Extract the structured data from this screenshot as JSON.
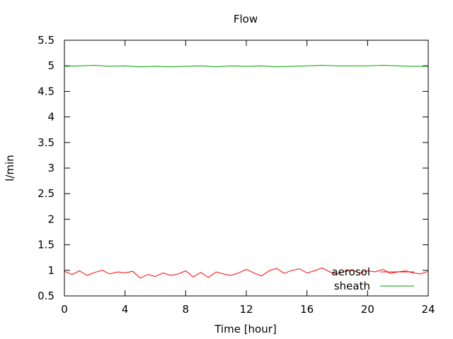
{
  "chart_data": {
    "type": "line",
    "title": "Flow",
    "xlabel": "Time [hour]",
    "ylabel": "l/min",
    "xlim": [
      0,
      24
    ],
    "ylim": [
      0.5,
      5.5
    ],
    "xticks": [
      0,
      4,
      8,
      12,
      16,
      20,
      24
    ],
    "xtick_labels": [
      "0",
      "4",
      "8",
      "12",
      "16",
      "20",
      "24"
    ],
    "yticks": [
      0.5,
      1,
      1.5,
      2,
      2.5,
      3,
      3.5,
      4,
      4.5,
      5,
      5.5
    ],
    "ytick_labels": [
      "0.5",
      "1",
      "1.5",
      "2",
      "2.5",
      "3",
      "3.5",
      "4",
      "4.5",
      "5",
      "5.5"
    ],
    "grid": false,
    "legend_position": "bottom-right",
    "series": [
      {
        "name": "aerosol",
        "color": "#ff0000",
        "x": [
          0,
          0.5,
          1,
          1.5,
          2,
          2.5,
          3,
          3.5,
          4,
          4.5,
          5,
          5.5,
          6,
          6.5,
          7,
          7.5,
          8,
          8.5,
          9,
          9.5,
          10,
          10.5,
          11,
          11.5,
          12,
          12.5,
          13,
          13.5,
          14,
          14.5,
          15,
          15.5,
          16,
          16.5,
          17,
          17.5,
          18,
          18.5,
          19,
          19.5,
          20,
          20.5,
          21,
          21.5,
          22,
          22.5,
          23,
          23.5,
          24
        ],
        "values": [
          0.98,
          0.92,
          0.99,
          0.9,
          0.96,
          1.0,
          0.93,
          0.97,
          0.95,
          0.98,
          0.85,
          0.92,
          0.88,
          0.95,
          0.9,
          0.93,
          0.99,
          0.87,
          0.96,
          0.86,
          0.97,
          0.93,
          0.9,
          0.95,
          1.02,
          0.95,
          0.89,
          0.99,
          1.04,
          0.94,
          1.0,
          1.03,
          0.95,
          0.99,
          1.05,
          0.97,
          0.93,
          0.98,
          1.0,
          0.95,
          0.99,
          0.97,
          1.02,
          0.94,
          0.97,
          0.99,
          0.95,
          0.93,
          0.98
        ]
      },
      {
        "name": "sheath",
        "color": "#00a000",
        "x": [
          0,
          1,
          2,
          3,
          4,
          5,
          6,
          7,
          8,
          9,
          10,
          11,
          12,
          13,
          14,
          15,
          16,
          17,
          18,
          19,
          20,
          21,
          22,
          23,
          24
        ],
        "values": [
          4.99,
          5.0,
          5.01,
          4.99,
          5.0,
          4.98,
          4.99,
          4.98,
          4.99,
          5.0,
          4.98,
          5.0,
          4.99,
          5.0,
          4.98,
          4.99,
          5.0,
          5.01,
          5.0,
          5.0,
          5.0,
          5.01,
          5.0,
          4.99,
          4.99
        ]
      }
    ]
  }
}
